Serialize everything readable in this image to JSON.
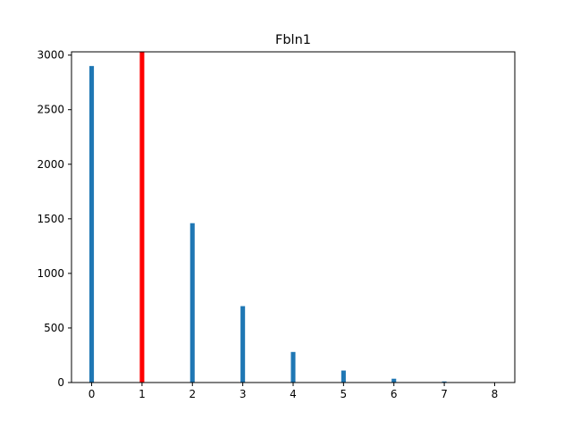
{
  "chart_data": {
    "type": "bar",
    "title": "Fbln1",
    "xlabel": "",
    "ylabel": "",
    "x": [
      0,
      1,
      2,
      3,
      4,
      5,
      6,
      7,
      8
    ],
    "values": [
      2900,
      3050,
      1460,
      700,
      280,
      110,
      35,
      10,
      3
    ],
    "highlight": {
      "x": 1,
      "color": "#ff0000"
    },
    "bar_color": "#1f77b4",
    "xlim": [
      -0.4,
      8.4
    ],
    "ylim": [
      0,
      3030
    ],
    "xticks": [
      0,
      1,
      2,
      3,
      4,
      5,
      6,
      7,
      8
    ],
    "xtick_labels": [
      "0",
      "1",
      "2",
      "3",
      "4",
      "5",
      "6",
      "7",
      "8"
    ],
    "yticks": [
      0,
      500,
      1000,
      1500,
      2000,
      2500,
      3000
    ],
    "ytick_labels": [
      "0",
      "500",
      "1000",
      "1500",
      "2000",
      "2500",
      "3000"
    ],
    "grid": false,
    "legend": false
  }
}
